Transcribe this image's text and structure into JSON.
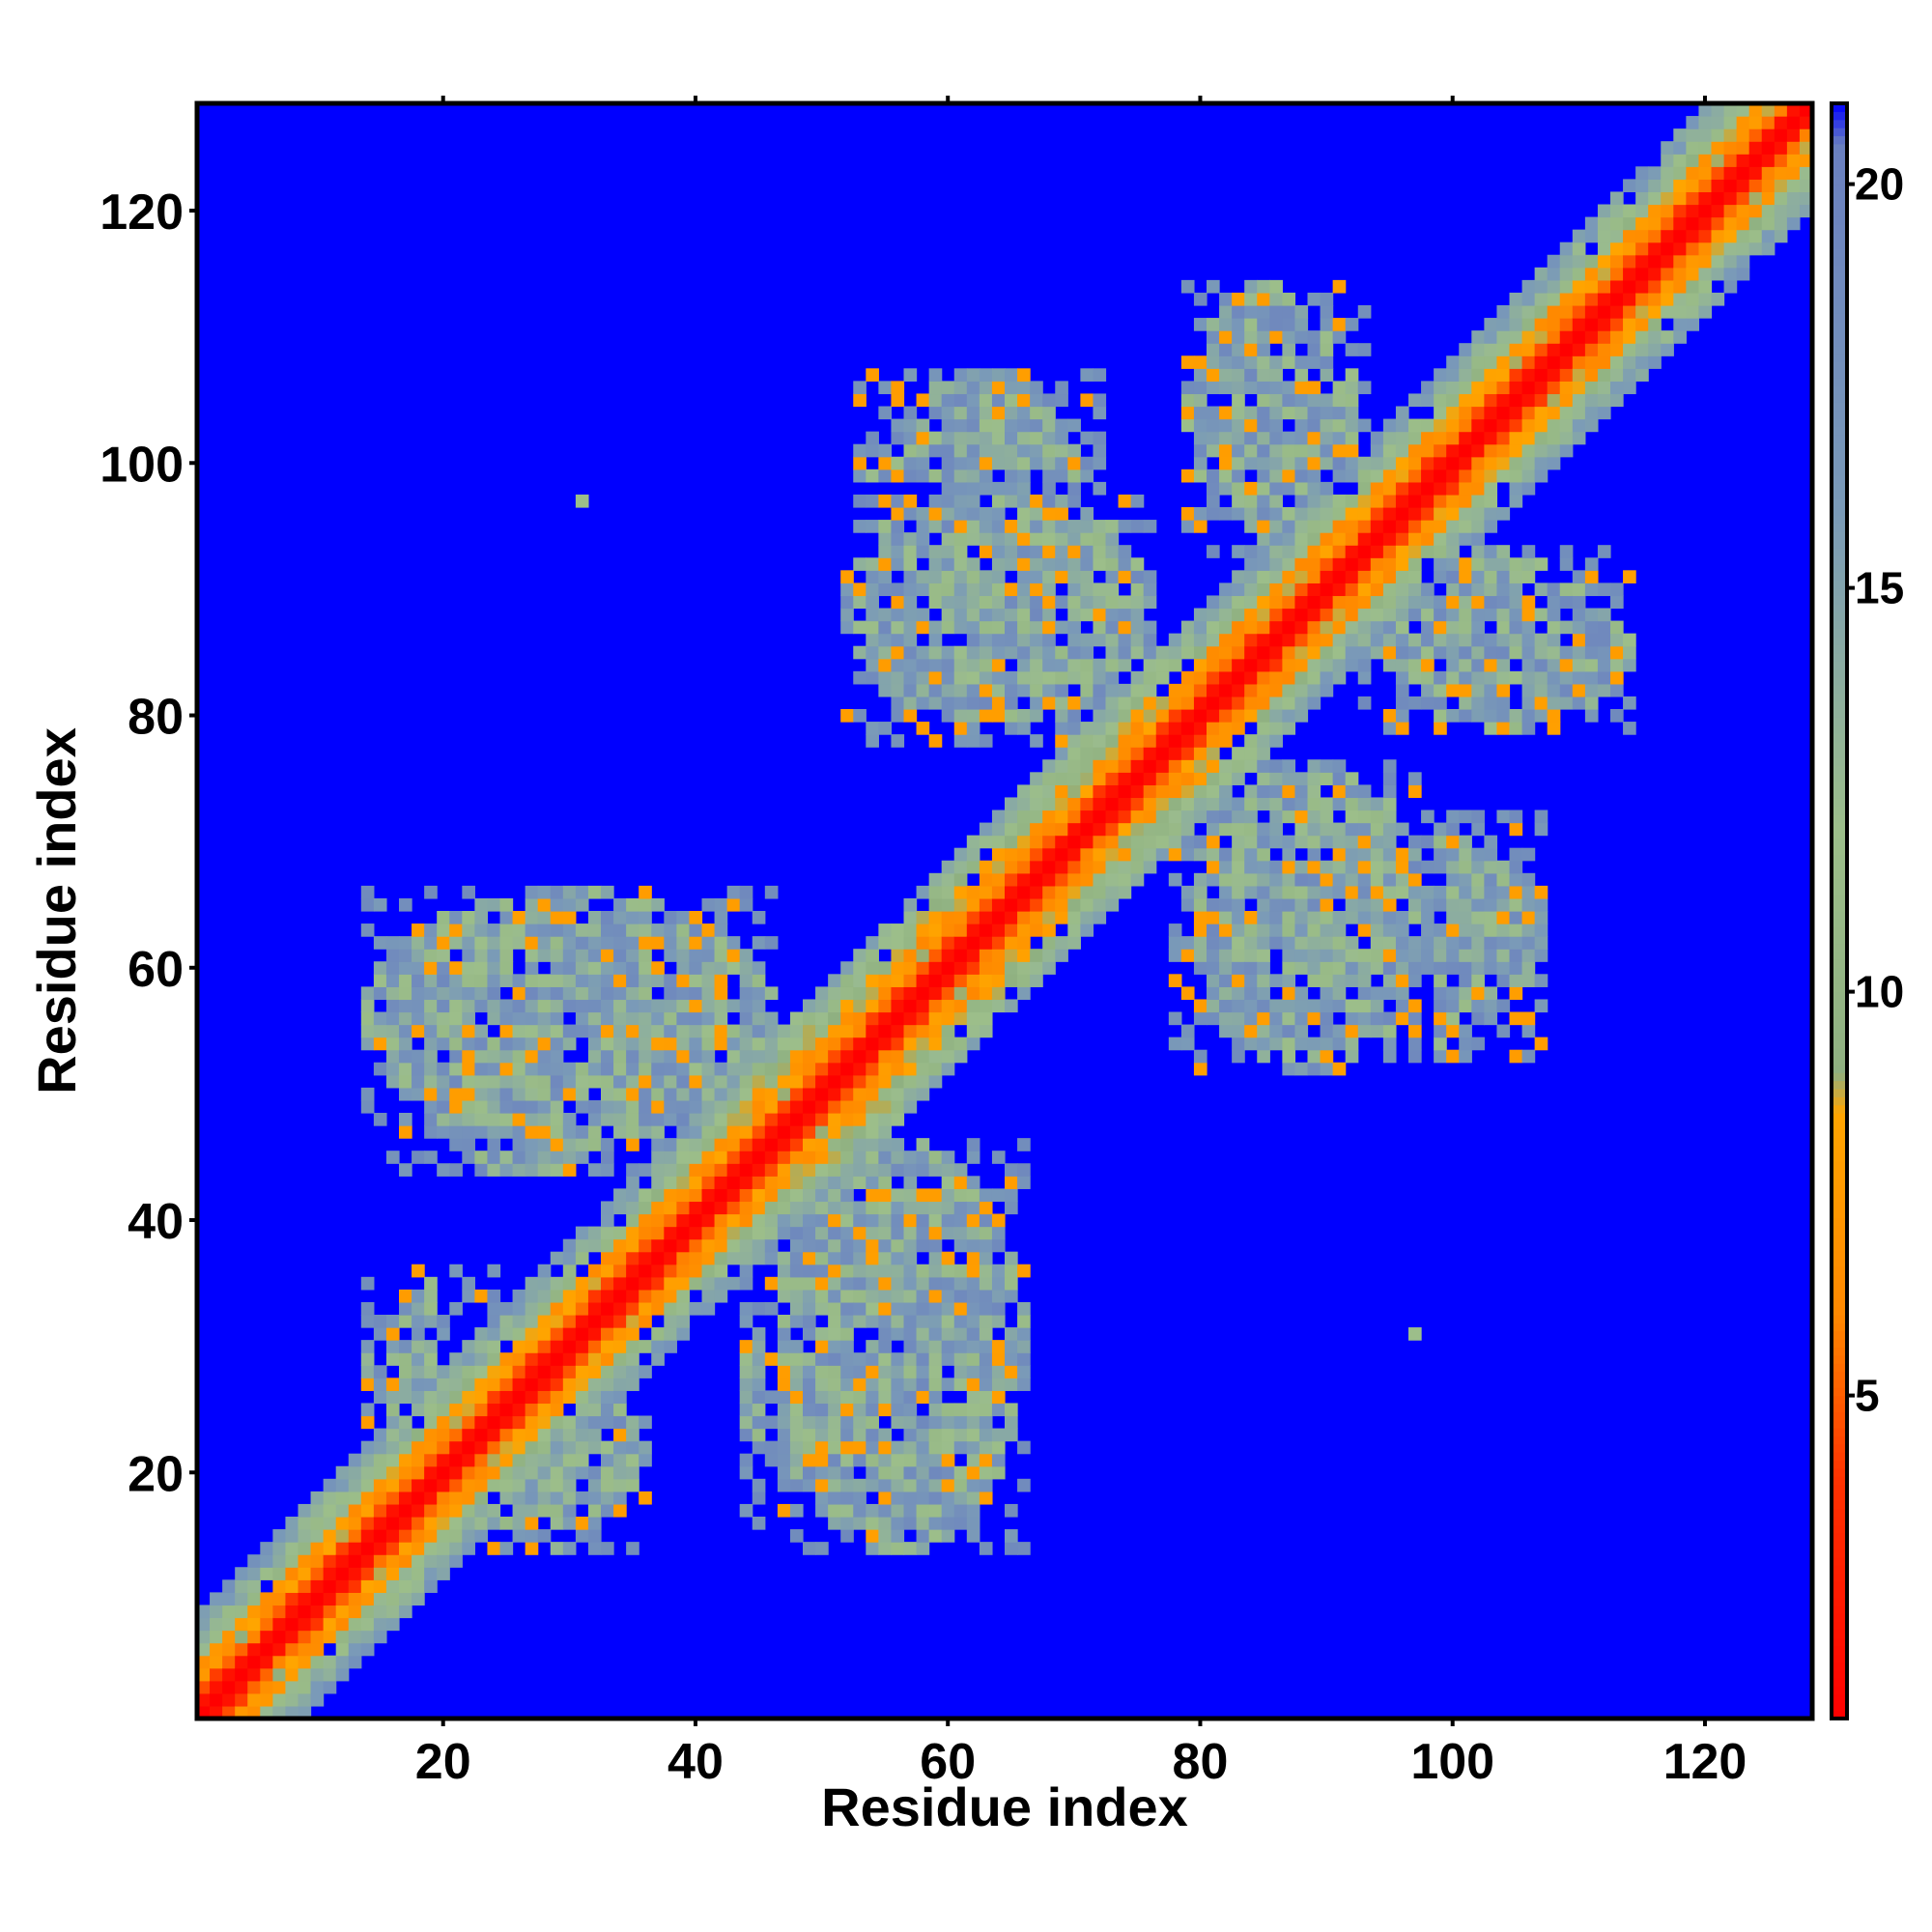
{
  "chart_data": {
    "type": "heatmap",
    "title": "",
    "xlabel": "Residue index",
    "ylabel": "Residue index",
    "xlim": [
      1,
      128
    ],
    "ylim": [
      1,
      128
    ],
    "x_ticks": [
      20,
      40,
      60,
      80,
      100,
      120
    ],
    "y_ticks": [
      20,
      40,
      60,
      80,
      100,
      120
    ],
    "n_residues": 128,
    "symmetric": true,
    "cutoff": 21,
    "colorbar": {
      "range": [
        1,
        21
      ],
      "ticks": [
        5,
        10,
        15,
        20
      ],
      "stops": [
        {
          "value": 1,
          "color": "#ff0000"
        },
        {
          "value": 4,
          "color": "#ff3300"
        },
        {
          "value": 6,
          "color": "#ff8800"
        },
        {
          "value": 8.5,
          "color": "#ffa500"
        },
        {
          "value": 9,
          "color": "#8fb081"
        },
        {
          "value": 12,
          "color": "#9cbe8a"
        },
        {
          "value": 16,
          "color": "#7a9ab8"
        },
        {
          "value": 20.5,
          "color": "#6a80c0"
        },
        {
          "value": 21,
          "color": "#0000ff"
        }
      ]
    },
    "colors": {
      "background": "#0000ff",
      "near": "#ff0000",
      "mid": "#ffa500",
      "far": "#9cbe8a"
    },
    "contact_regions": [
      {
        "x": [
          14,
          46
        ],
        "y": [
          46,
          66
        ]
      },
      {
        "x": [
          44,
          66
        ],
        "y": [
          15,
          38
        ]
      },
      {
        "x": [
          52,
          76
        ],
        "y": [
          79,
          98
        ]
      },
      {
        "x": [
          78,
          107
        ],
        "y": [
          53,
          72
        ]
      },
      {
        "x": [
          79,
          91
        ],
        "y": [
          95,
          114
        ]
      },
      {
        "x": [
          93,
          112
        ],
        "y": [
          80,
          93
        ]
      },
      {
        "x": [
          20,
          36
        ],
        "y": [
          15,
          28
        ]
      },
      {
        "x": [
          14,
          28
        ],
        "y": [
          20,
          36
        ]
      }
    ],
    "isolated_points": [
      [
        31,
        97
      ],
      [
        97,
        31
      ]
    ]
  }
}
